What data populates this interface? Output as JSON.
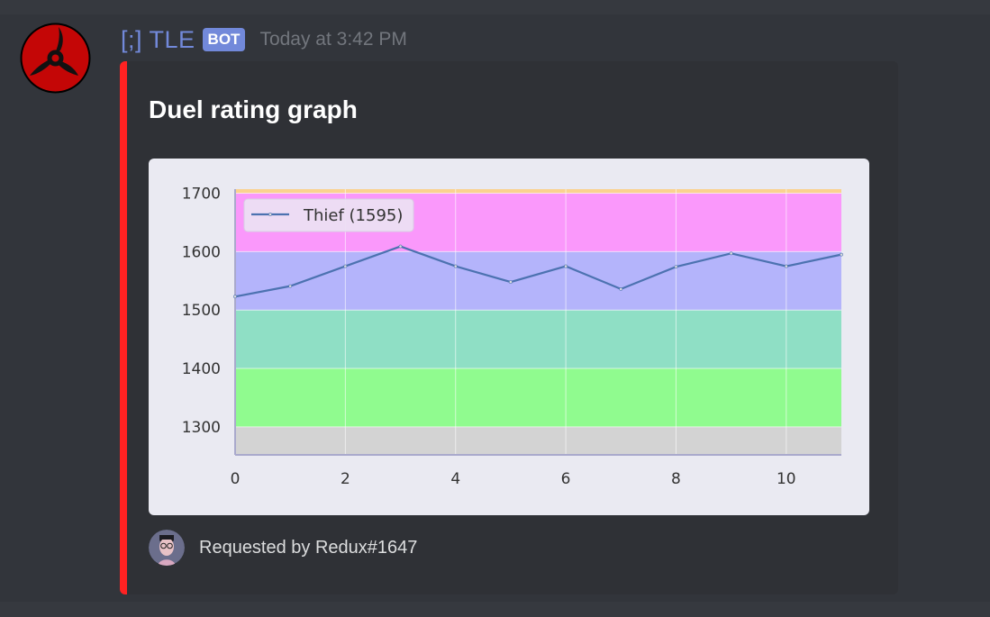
{
  "message": {
    "author": "[;] TLE",
    "badge": "BOT",
    "timestamp": "Today at 3:42 PM",
    "avatar_icon": "sharingan-avatar-icon"
  },
  "embed": {
    "accent_color": "#ff2222",
    "title": "Duel rating graph",
    "footer": {
      "text": "Requested by Redux#1647",
      "avatar_icon": "user-avatar-icon"
    }
  },
  "chart_data": {
    "type": "line",
    "title": "",
    "xlabel": "",
    "ylabel": "",
    "x": [
      0,
      1,
      2,
      3,
      4,
      5,
      6,
      7,
      8,
      9,
      10,
      11
    ],
    "series": [
      {
        "name": "Thief (1595)",
        "color": "#4c72b0",
        "values": [
          1523,
          1541,
          1575,
          1609,
          1575,
          1548,
          1575,
          1536,
          1574,
          1597,
          1575,
          1595
        ]
      }
    ],
    "xlim": [
      0,
      11
    ],
    "ylim": [
      1252,
      1707
    ],
    "xticks": [
      0,
      2,
      4,
      6,
      8,
      10
    ],
    "yticks": [
      1300,
      1400,
      1500,
      1600,
      1700
    ],
    "grid": true,
    "legend_position": "upper left",
    "background_bands": [
      {
        "from": 1252,
        "to": 1300,
        "color": "#d3d3d3"
      },
      {
        "from": 1300,
        "to": 1400,
        "color": "#90fb8f"
      },
      {
        "from": 1400,
        "to": 1500,
        "color": "#8fdfc5"
      },
      {
        "from": 1500,
        "to": 1600,
        "color": "#b4b4fb"
      },
      {
        "from": 1600,
        "to": 1700,
        "color": "#fa98fb"
      },
      {
        "from": 1700,
        "to": 1707,
        "color": "#fad28f"
      }
    ]
  }
}
